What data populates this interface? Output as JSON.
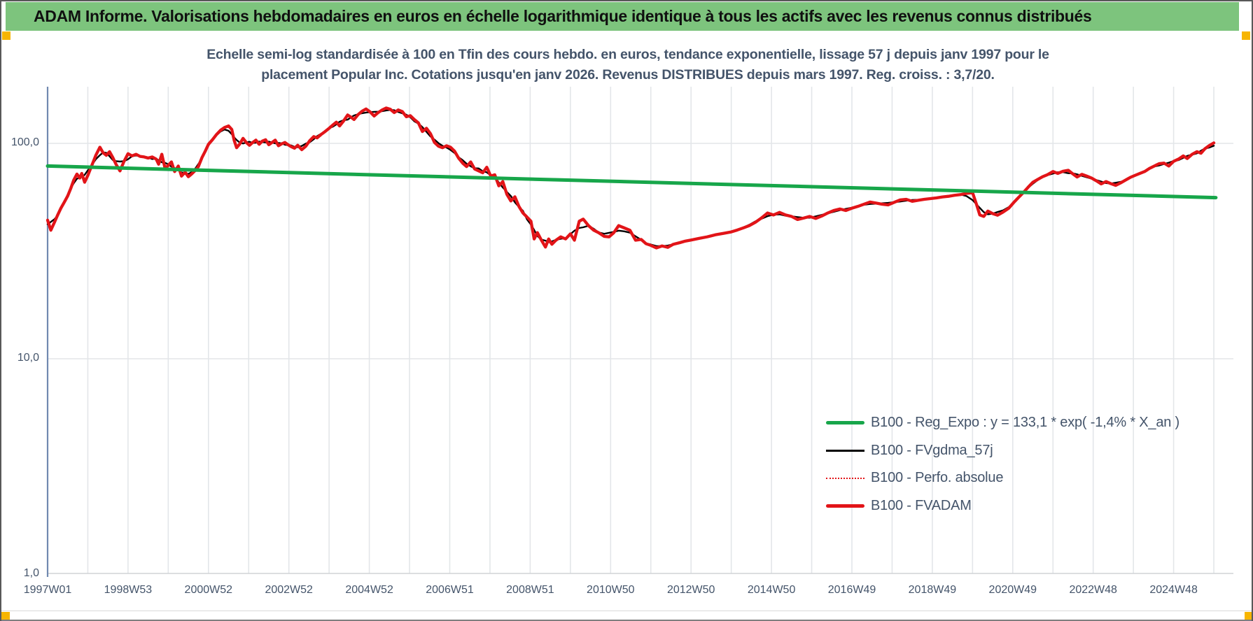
{
  "header": {
    "title": "ADAM Informe. Valorisations hebdomadaires en euros en échelle logarithmique identique à tous les actifs avec les revenus connus distribués"
  },
  "chart": {
    "title_line1": "Echelle semi-log standardisée à 100 en Tfin des cours hebdo. en euros, tendance exponentielle, lissage 57 j depuis janv 1997 pour le",
    "title_line2": "placement Popular Inc. Cotations jusqu'en janv 2026. Revenus DISTRIBUES depuis mars 1997. Reg. croiss. : 3,7/20."
  },
  "colors": {
    "header_green": "#7DC47D",
    "accent_orange": "#F7B500",
    "text_dark_blue": "#44546A",
    "grid": "#E3E6E9",
    "axis_blue": "#7189B0",
    "green_series": "#17A64A",
    "red_series": "#E21418",
    "black_series": "#000000"
  },
  "legend": {
    "items": [
      {
        "label": "B100 - Reg_Expo : y = 133,1 * exp( -1,4% *  X_an )",
        "color": "#17A64A",
        "style": "solid-thick"
      },
      {
        "label": "B100 - FVgdma_57j",
        "color": "#000000",
        "style": "solid-thin"
      },
      {
        "label": "B100 - Perfo. absolue",
        "color": "#E21418",
        "style": "dotted"
      },
      {
        "label": "B100 - FVADAM",
        "color": "#E21418",
        "style": "solid-thick"
      }
    ]
  },
  "chart_data": {
    "type": "line",
    "scale": "semilog-y",
    "grid": "yearly vertical lines, decade horizontal lines",
    "legend_position": "inside right-bottom",
    "x_axis": {
      "tick_labels": [
        "1997W01",
        "1998W53",
        "2000W52",
        "2002W52",
        "2004W52",
        "2006W51",
        "2008W51",
        "2010W50",
        "2012W50",
        "2014W50",
        "2016W49",
        "2018W49",
        "2020W49",
        "2022W48",
        "2024W48"
      ],
      "tick_years": [
        1997,
        1999,
        2001,
        2003,
        2005,
        2007,
        2009,
        2011,
        2013,
        2015,
        2017,
        2019,
        2021,
        2023,
        2025
      ],
      "range_years": [
        1997.0,
        2026.1
      ]
    },
    "y_axis": {
      "ticks": [
        {
          "label": "100,0",
          "value": 100
        },
        {
          "label": "10,0",
          "value": 10
        },
        {
          "label": "1,0",
          "value": 1
        }
      ],
      "range": [
        1,
        210
      ]
    },
    "series": [
      {
        "name": "B100 - Reg_Expo : y = 133,1 * exp( -1,4% *  X_an )",
        "color": "#17A64A",
        "style": "solid",
        "width": 5,
        "points": [
          [
            1997.0,
            78.5
          ],
          [
            2026.05,
            56
          ]
        ]
      },
      {
        "name": "B100 - FVgdma_57j",
        "color": "#000000",
        "style": "solid",
        "width": 2.4,
        "derived_from": "B100 - FVADAM",
        "smoothing_window": 5
      },
      {
        "name": "B100 - Perfo. absolue",
        "color": "#E21418",
        "style": "dotted",
        "width": 1.6,
        "same_points_as": "B100 - FVADAM"
      },
      {
        "name": "B100 - FVADAM",
        "color": "#E21418",
        "style": "solid",
        "width": 4.3,
        "points": [
          [
            1997.0,
            44
          ],
          [
            1997.08,
            39.5
          ],
          [
            1997.17,
            43
          ],
          [
            1997.25,
            46.5
          ],
          [
            1997.33,
            50
          ],
          [
            1997.42,
            53.5
          ],
          [
            1997.5,
            57
          ],
          [
            1997.58,
            62
          ],
          [
            1997.65,
            67.5
          ],
          [
            1997.73,
            72
          ],
          [
            1997.8,
            69
          ],
          [
            1997.85,
            72.5
          ],
          [
            1997.92,
            66
          ],
          [
            1998.0,
            71
          ],
          [
            1998.1,
            79
          ],
          [
            1998.2,
            88
          ],
          [
            1998.3,
            96
          ],
          [
            1998.38,
            90.5
          ],
          [
            1998.46,
            88
          ],
          [
            1998.54,
            91.5
          ],
          [
            1998.62,
            86
          ],
          [
            1998.7,
            80
          ],
          [
            1998.8,
            74.5
          ],
          [
            1998.9,
            82.5
          ],
          [
            1999.0,
            89.5
          ],
          [
            1999.1,
            87.5
          ],
          [
            1999.2,
            89
          ],
          [
            1999.3,
            87
          ],
          [
            1999.4,
            86.5
          ],
          [
            1999.5,
            85.5
          ],
          [
            1999.6,
            86.5
          ],
          [
            1999.7,
            84.5
          ],
          [
            1999.76,
            80
          ],
          [
            1999.84,
            89
          ],
          [
            1999.92,
            76.5
          ],
          [
            2000.0,
            79
          ],
          [
            2000.08,
            82
          ],
          [
            2000.16,
            74
          ],
          [
            2000.25,
            78.5
          ],
          [
            2000.33,
            70.5
          ],
          [
            2000.42,
            73.5
          ],
          [
            2000.5,
            70
          ],
          [
            2000.58,
            72
          ],
          [
            2000.66,
            74.5
          ],
          [
            2000.75,
            78
          ],
          [
            2000.84,
            86
          ],
          [
            2000.92,
            92
          ],
          [
            2001.0,
            99
          ],
          [
            2001.1,
            104
          ],
          [
            2001.2,
            110
          ],
          [
            2001.3,
            115
          ],
          [
            2001.4,
            118.5
          ],
          [
            2001.5,
            120.5
          ],
          [
            2001.58,
            116
          ],
          [
            2001.64,
            103
          ],
          [
            2001.7,
            95.5
          ],
          [
            2001.78,
            99.5
          ],
          [
            2001.86,
            105.5
          ],
          [
            2001.94,
            101
          ],
          [
            2002.02,
            98
          ],
          [
            2002.1,
            101
          ],
          [
            2002.18,
            103.5
          ],
          [
            2002.26,
            99
          ],
          [
            2002.34,
            102.5
          ],
          [
            2002.42,
            104
          ],
          [
            2002.5,
            98.5
          ],
          [
            2002.58,
            101
          ],
          [
            2002.66,
            103.5
          ],
          [
            2002.74,
            97.5
          ],
          [
            2002.82,
            99.5
          ],
          [
            2002.9,
            101
          ],
          [
            2002.98,
            98.5
          ],
          [
            2003.06,
            96.5
          ],
          [
            2003.14,
            95
          ],
          [
            2003.22,
            98
          ],
          [
            2003.32,
            93.5
          ],
          [
            2003.42,
            97
          ],
          [
            2003.52,
            103
          ],
          [
            2003.62,
            107.5
          ],
          [
            2003.7,
            106
          ],
          [
            2003.8,
            110
          ],
          [
            2003.9,
            113.5
          ],
          [
            2004.0,
            117.5
          ],
          [
            2004.1,
            122
          ],
          [
            2004.18,
            125.5
          ],
          [
            2004.26,
            120.5
          ],
          [
            2004.36,
            127
          ],
          [
            2004.46,
            135.5
          ],
          [
            2004.54,
            132.5
          ],
          [
            2004.62,
            129
          ],
          [
            2004.72,
            136
          ],
          [
            2004.82,
            141
          ],
          [
            2004.92,
            144.5
          ],
          [
            2005.02,
            140
          ],
          [
            2005.12,
            134
          ],
          [
            2005.22,
            139
          ],
          [
            2005.32,
            143
          ],
          [
            2005.42,
            146
          ],
          [
            2005.52,
            144
          ],
          [
            2005.62,
            139
          ],
          [
            2005.72,
            143
          ],
          [
            2005.82,
            140.5
          ],
          [
            2005.92,
            133
          ],
          [
            2006.02,
            134.5
          ],
          [
            2006.12,
            129
          ],
          [
            2006.22,
            124.5
          ],
          [
            2006.32,
            113.5
          ],
          [
            2006.42,
            117.5
          ],
          [
            2006.52,
            111
          ],
          [
            2006.62,
            101
          ],
          [
            2006.72,
            97
          ],
          [
            2006.82,
            95.5
          ],
          [
            2006.92,
            97.5
          ],
          [
            2007.02,
            96
          ],
          [
            2007.12,
            92
          ],
          [
            2007.22,
            85.5
          ],
          [
            2007.32,
            81
          ],
          [
            2007.42,
            78
          ],
          [
            2007.52,
            82
          ],
          [
            2007.62,
            76
          ],
          [
            2007.72,
            74.5
          ],
          [
            2007.82,
            73
          ],
          [
            2007.92,
            77.5
          ],
          [
            2008.02,
            70.5
          ],
          [
            2008.12,
            71.5
          ],
          [
            2008.22,
            63.5
          ],
          [
            2008.32,
            66.5
          ],
          [
            2008.42,
            58
          ],
          [
            2008.52,
            54
          ],
          [
            2008.62,
            56.5
          ],
          [
            2008.72,
            51
          ],
          [
            2008.82,
            47.5
          ],
          [
            2008.92,
            45.5
          ],
          [
            2009.02,
            43.5
          ],
          [
            2009.1,
            36
          ],
          [
            2009.18,
            38.5
          ],
          [
            2009.28,
            35.5
          ],
          [
            2009.38,
            33
          ],
          [
            2009.46,
            36
          ],
          [
            2009.54,
            34
          ],
          [
            2009.64,
            35.5
          ],
          [
            2009.76,
            36.8
          ],
          [
            2009.88,
            36
          ],
          [
            2010.0,
            38
          ],
          [
            2010.1,
            35.5
          ],
          [
            2010.22,
            43.5
          ],
          [
            2010.32,
            44.5
          ],
          [
            2010.45,
            41.5
          ],
          [
            2010.58,
            39.5
          ],
          [
            2010.7,
            38.5
          ],
          [
            2010.84,
            37
          ],
          [
            2010.96,
            36.8
          ],
          [
            2011.08,
            38.5
          ],
          [
            2011.2,
            41.5
          ],
          [
            2011.34,
            40.5
          ],
          [
            2011.48,
            39.5
          ],
          [
            2011.62,
            35.5
          ],
          [
            2011.76,
            35.8
          ],
          [
            2011.88,
            34.2
          ],
          [
            2012.0,
            33.6
          ],
          [
            2012.14,
            32.7
          ],
          [
            2012.28,
            33.4
          ],
          [
            2012.42,
            32.9
          ],
          [
            2012.56,
            34
          ],
          [
            2012.72,
            34.6
          ],
          [
            2012.86,
            35.2
          ],
          [
            2013.0,
            35.6
          ],
          [
            2013.2,
            36.2
          ],
          [
            2013.4,
            36.8
          ],
          [
            2013.6,
            37.6
          ],
          [
            2013.8,
            38.2
          ],
          [
            2014.0,
            38.8
          ],
          [
            2014.15,
            39.6
          ],
          [
            2014.3,
            40.5
          ],
          [
            2014.45,
            41.5
          ],
          [
            2014.6,
            43
          ],
          [
            2014.75,
            45
          ],
          [
            2014.9,
            47.5
          ],
          [
            2015.05,
            46.5
          ],
          [
            2015.2,
            47.8
          ],
          [
            2015.35,
            46.5
          ],
          [
            2015.5,
            45.8
          ],
          [
            2015.65,
            44.3
          ],
          [
            2015.8,
            45
          ],
          [
            2015.95,
            45.8
          ],
          [
            2016.1,
            44.8
          ],
          [
            2016.25,
            46
          ],
          [
            2016.4,
            47.5
          ],
          [
            2016.55,
            48.8
          ],
          [
            2016.7,
            49.6
          ],
          [
            2016.85,
            48.8
          ],
          [
            2017.0,
            50
          ],
          [
            2017.15,
            51
          ],
          [
            2017.3,
            52.2
          ],
          [
            2017.45,
            53.4
          ],
          [
            2017.6,
            52.8
          ],
          [
            2017.75,
            52.2
          ],
          [
            2017.9,
            51.8
          ],
          [
            2018.05,
            53.2
          ],
          [
            2018.2,
            54.6
          ],
          [
            2018.35,
            55
          ],
          [
            2018.5,
            53.8
          ],
          [
            2018.65,
            54.4
          ],
          [
            2018.8,
            55
          ],
          [
            2018.95,
            55.4
          ],
          [
            2019.1,
            55.8
          ],
          [
            2019.25,
            56.4
          ],
          [
            2019.4,
            56.8
          ],
          [
            2019.55,
            57.4
          ],
          [
            2019.7,
            57.8
          ],
          [
            2019.85,
            58.6
          ],
          [
            2020.0,
            59
          ],
          [
            2020.1,
            52
          ],
          [
            2020.18,
            46.5
          ],
          [
            2020.28,
            45.8
          ],
          [
            2020.38,
            48.5
          ],
          [
            2020.5,
            47.2
          ],
          [
            2020.62,
            46.4
          ],
          [
            2020.76,
            48
          ],
          [
            2020.9,
            50
          ],
          [
            2021.02,
            53
          ],
          [
            2021.14,
            56
          ],
          [
            2021.26,
            59
          ],
          [
            2021.38,
            62.5
          ],
          [
            2021.5,
            66
          ],
          [
            2021.62,
            68
          ],
          [
            2021.74,
            70
          ],
          [
            2021.86,
            71.5
          ],
          [
            2022.0,
            74
          ],
          [
            2022.12,
            72.5
          ],
          [
            2022.25,
            74.2
          ],
          [
            2022.38,
            75
          ],
          [
            2022.5,
            72
          ],
          [
            2022.6,
            69.8
          ],
          [
            2022.72,
            71.8
          ],
          [
            2022.84,
            70.5
          ],
          [
            2022.96,
            69
          ],
          [
            2023.08,
            67
          ],
          [
            2023.2,
            64.8
          ],
          [
            2023.32,
            66.5
          ],
          [
            2023.44,
            65
          ],
          [
            2023.56,
            63.8
          ],
          [
            2023.68,
            65.5
          ],
          [
            2023.8,
            67.5
          ],
          [
            2023.92,
            69.5
          ],
          [
            2024.04,
            71
          ],
          [
            2024.16,
            72.5
          ],
          [
            2024.28,
            74
          ],
          [
            2024.4,
            76.5
          ],
          [
            2024.52,
            78.5
          ],
          [
            2024.64,
            80.5
          ],
          [
            2024.76,
            81
          ],
          [
            2024.88,
            78.5
          ],
          [
            2025.0,
            82.5
          ],
          [
            2025.12,
            84.5
          ],
          [
            2025.24,
            87.5
          ],
          [
            2025.34,
            85
          ],
          [
            2025.46,
            89
          ],
          [
            2025.58,
            91.5
          ],
          [
            2025.68,
            90
          ],
          [
            2025.78,
            94.5
          ],
          [
            2025.88,
            97.5
          ],
          [
            2026.0,
            100.5
          ]
        ]
      }
    ]
  }
}
